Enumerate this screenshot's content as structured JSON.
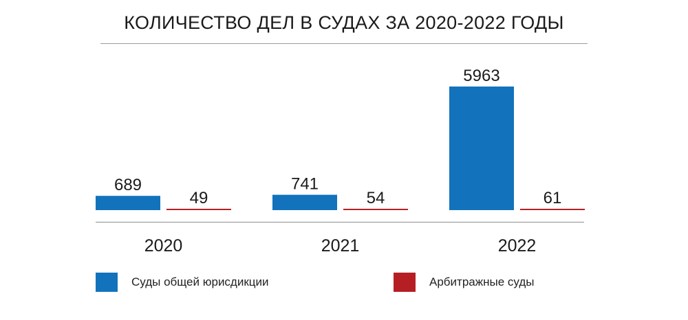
{
  "chart_data": {
    "type": "bar",
    "title": "КОЛИЧЕСТВО ДЕЛ В СУДАХ ЗА 2020-2022 ГОДЫ",
    "categories": [
      "2020",
      "2021",
      "2022"
    ],
    "series": [
      {
        "name": "Суды общей юрисдикции",
        "values": [
          689,
          741,
          5963
        ],
        "color": "#1273BC"
      },
      {
        "name": "Арбитражные суды",
        "values": [
          49,
          54,
          61
        ],
        "color": "#B51F24"
      }
    ],
    "ylim": [
      0,
      5963
    ],
    "grid": false,
    "legend_position": "bottom"
  }
}
